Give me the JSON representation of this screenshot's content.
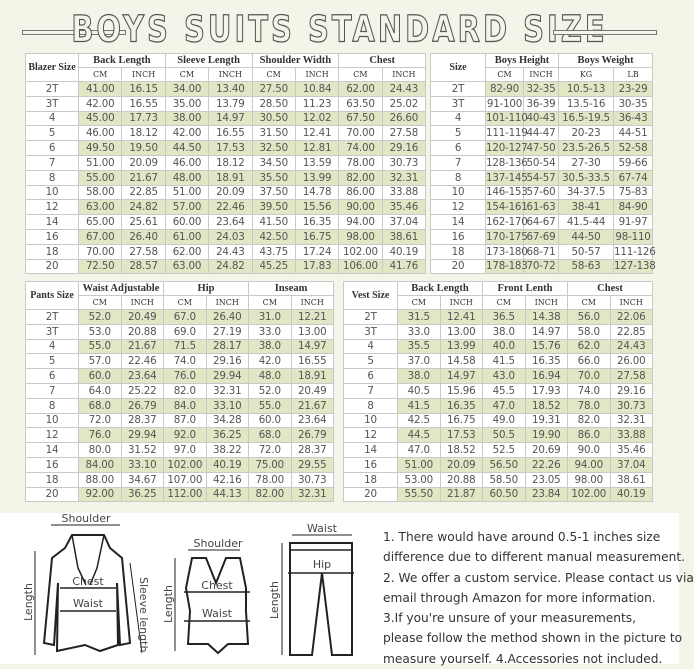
{
  "title": "BOYS SUITS STANDARD SIZE",
  "colors": {
    "background": "#f4f5e9",
    "row_shade": "#e0e7c4",
    "border": "#999999"
  },
  "tables": {
    "blazer": {
      "size_label": "Blazer Size",
      "groups": [
        "Back Length",
        "Sleeve Length",
        "Shoulder Width",
        "Chest"
      ],
      "units": [
        "CM",
        "INCH",
        "CM",
        "INCH",
        "CM",
        "INCH",
        "CM",
        "INCH"
      ],
      "rows": [
        [
          "2T",
          "41.00",
          "16.15",
          "34.00",
          "13.40",
          "27.50",
          "10.84",
          "62.00",
          "24.43"
        ],
        [
          "3T",
          "42.00",
          "16.55",
          "35.00",
          "13.79",
          "28.50",
          "11.23",
          "63.50",
          "25.02"
        ],
        [
          "4",
          "45.00",
          "17.73",
          "38.00",
          "14.97",
          "30.50",
          "12.02",
          "67.50",
          "26.60"
        ],
        [
          "5",
          "46.00",
          "18.12",
          "42.00",
          "16.55",
          "31.50",
          "12.41",
          "70.00",
          "27.58"
        ],
        [
          "6",
          "49.50",
          "19.50",
          "44.50",
          "17.53",
          "32.50",
          "12.81",
          "74.00",
          "29.16"
        ],
        [
          "7",
          "51.00",
          "20.09",
          "46.00",
          "18.12",
          "34.50",
          "13.59",
          "78.00",
          "30.73"
        ],
        [
          "8",
          "55.00",
          "21.67",
          "48.00",
          "18.91",
          "35.50",
          "13.99",
          "82.00",
          "32.31"
        ],
        [
          "10",
          "58.00",
          "22.85",
          "51.00",
          "20.09",
          "37.50",
          "14.78",
          "86.00",
          "33.88"
        ],
        [
          "12",
          "63.00",
          "24.82",
          "57.00",
          "22.46",
          "39.50",
          "15.56",
          "90.00",
          "35.46"
        ],
        [
          "14",
          "65.00",
          "25.61",
          "60.00",
          "23.64",
          "41.50",
          "16.35",
          "94.00",
          "37.04"
        ],
        [
          "16",
          "67.00",
          "26.40",
          "61.00",
          "24.03",
          "42.50",
          "16.75",
          "98.00",
          "38.61"
        ],
        [
          "18",
          "70.00",
          "27.58",
          "62.00",
          "24.43",
          "43.75",
          "17.24",
          "102.00",
          "40.19"
        ],
        [
          "20",
          "72.50",
          "28.57",
          "63.00",
          "24.82",
          "45.25",
          "17.83",
          "106.00",
          "41.76"
        ]
      ]
    },
    "size": {
      "size_label": "Size",
      "groups": [
        "Boys Height",
        "Boys Weight"
      ],
      "units": [
        "CM",
        "INCH",
        "KG",
        "LB"
      ],
      "rows": [
        [
          "2T",
          "82-90",
          "32-35",
          "10.5-13",
          "23-29"
        ],
        [
          "3T",
          "91-100",
          "36-39",
          "13.5-16",
          "30-35"
        ],
        [
          "4",
          "101-110",
          "40-43",
          "16.5-19.5",
          "36-43"
        ],
        [
          "5",
          "111-119",
          "44-47",
          "20-23",
          "44-51"
        ],
        [
          "6",
          "120-127",
          "47-50",
          "23.5-26.5",
          "52-58"
        ],
        [
          "7",
          "128-136",
          "50-54",
          "27-30",
          "59-66"
        ],
        [
          "8",
          "137-145",
          "54-57",
          "30.5-33.5",
          "67-74"
        ],
        [
          "10",
          "146-153",
          "57-60",
          "34-37.5",
          "75-83"
        ],
        [
          "12",
          "154-161",
          "61-63",
          "38-41",
          "84-90"
        ],
        [
          "14",
          "162-170",
          "64-67",
          "41.5-44",
          "91-97"
        ],
        [
          "16",
          "170-175",
          "67-69",
          "44-50",
          "98-110"
        ],
        [
          "18",
          "173-180",
          "68-71",
          "50-57",
          "111-126"
        ],
        [
          "20",
          "178-183",
          "70-72",
          "58-63",
          "127-138"
        ]
      ]
    },
    "pants": {
      "size_label": "Pants Size",
      "groups": [
        "Waist Adjustable",
        "Hip",
        "Inseam"
      ],
      "units": [
        "CM",
        "INCH",
        "CM",
        "INCH",
        "CM",
        "INCH"
      ],
      "rows": [
        [
          "2T",
          "52.0",
          "20.49",
          "67.0",
          "26.40",
          "31.0",
          "12.21"
        ],
        [
          "3T",
          "53.0",
          "20.88",
          "69.0",
          "27.19",
          "33.0",
          "13.00"
        ],
        [
          "4",
          "55.0",
          "21.67",
          "71.5",
          "28.17",
          "38.0",
          "14.97"
        ],
        [
          "5",
          "57.0",
          "22.46",
          "74.0",
          "29.16",
          "42.0",
          "16.55"
        ],
        [
          "6",
          "60.0",
          "23.64",
          "76.0",
          "29.94",
          "48.0",
          "18.91"
        ],
        [
          "7",
          "64.0",
          "25.22",
          "82.0",
          "32.31",
          "52.0",
          "20.49"
        ],
        [
          "8",
          "68.0",
          "26.79",
          "84.0",
          "33.10",
          "55.0",
          "21.67"
        ],
        [
          "10",
          "72.0",
          "28.37",
          "87.0",
          "34.28",
          "60.0",
          "23.64"
        ],
        [
          "12",
          "76.0",
          "29.94",
          "92.0",
          "36.25",
          "68.0",
          "26.79"
        ],
        [
          "14",
          "80.0",
          "31.52",
          "97.0",
          "38.22",
          "72.0",
          "28.37"
        ],
        [
          "16",
          "84.00",
          "33.10",
          "102.00",
          "40.19",
          "75.00",
          "29.55"
        ],
        [
          "18",
          "88.00",
          "34.67",
          "107.00",
          "42.16",
          "78.00",
          "30.73"
        ],
        [
          "20",
          "92.00",
          "36.25",
          "112.00",
          "44.13",
          "82.00",
          "32.31"
        ]
      ]
    },
    "vest": {
      "size_label": "Vest Size",
      "groups": [
        "Back Length",
        "Front Lenth",
        "Chest"
      ],
      "units": [
        "CM",
        "INCH",
        "CM",
        "INCH",
        "CM",
        "INCH"
      ],
      "rows": [
        [
          "2T",
          "31.5",
          "12.41",
          "36.5",
          "14.38",
          "56.0",
          "22.06"
        ],
        [
          "3T",
          "33.0",
          "13.00",
          "38.0",
          "14.97",
          "58.0",
          "22.85"
        ],
        [
          "4",
          "35.5",
          "13.99",
          "40.0",
          "15.76",
          "62.0",
          "24.43"
        ],
        [
          "5",
          "37.0",
          "14.58",
          "41.5",
          "16.35",
          "66.0",
          "26.00"
        ],
        [
          "6",
          "38.0",
          "14.97",
          "43.0",
          "16.94",
          "70.0",
          "27.58"
        ],
        [
          "7",
          "40.5",
          "15.96",
          "45.5",
          "17.93",
          "74.0",
          "29.16"
        ],
        [
          "8",
          "41.5",
          "16.35",
          "47.0",
          "18.52",
          "78.0",
          "30.73"
        ],
        [
          "10",
          "42.5",
          "16.75",
          "49.0",
          "19.31",
          "82.0",
          "32.31"
        ],
        [
          "12",
          "44.5",
          "17.53",
          "50.5",
          "19.90",
          "86.0",
          "33.88"
        ],
        [
          "14",
          "47.0",
          "18.52",
          "52.5",
          "20.69",
          "90.0",
          "35.46"
        ],
        [
          "16",
          "51.00",
          "20.09",
          "56.50",
          "22.26",
          "94.00",
          "37.04"
        ],
        [
          "18",
          "53.00",
          "20.88",
          "58.50",
          "23.05",
          "98.00",
          "38.61"
        ],
        [
          "20",
          "55.50",
          "21.87",
          "60.50",
          "23.84",
          "102.00",
          "40.19"
        ]
      ]
    }
  },
  "diagram": {
    "blazer": {
      "shoulder": "Shoulder",
      "chest": "Chest",
      "waist": "Waist",
      "length": "Length",
      "sleeve": "Sleeve length"
    },
    "vest": {
      "shoulder": "Shoulder",
      "chest": "Chest",
      "waist": "Waist",
      "length": "Length"
    },
    "pants": {
      "waist": "Waist",
      "hip": "Hip",
      "length": "Length"
    }
  },
  "notes": [
    "1. There would have around 0.5-1 inches size",
    "difference due to different manual measurement.",
    "2. We offer a custom service. Please contact us via",
    "email through Amazon for more information.",
    "3.If you're unsure of your measurements,",
    "please follow the method shown in the picture to",
    "measure yourself. 4.Accessories not included."
  ]
}
